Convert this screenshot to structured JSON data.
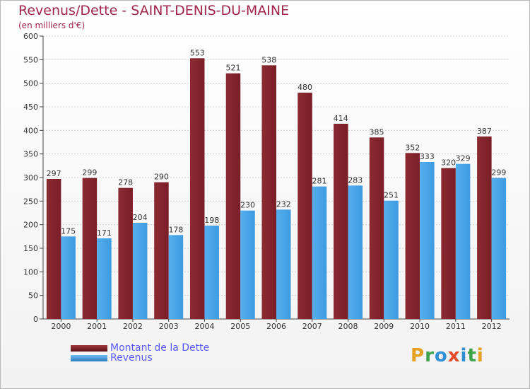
{
  "title": "Revenus/Dette - SAINT-DENIS-DU-MAINE",
  "subtitle": "(en milliers d'€)",
  "brand": "Proxiti",
  "chart_data": {
    "type": "bar",
    "categories": [
      "2000",
      "2001",
      "2002",
      "2003",
      "2004",
      "2005",
      "2006",
      "2007",
      "2008",
      "2009",
      "2010",
      "2011",
      "2012"
    ],
    "series": [
      {
        "name": "Montant de la Dette",
        "values": [
          297,
          299,
          278,
          290,
          553,
          521,
          538,
          480,
          414,
          385,
          352,
          320,
          387
        ],
        "color": "#7b1e27"
      },
      {
        "name": "Revenus",
        "values": [
          175,
          171,
          204,
          178,
          198,
          230,
          232,
          281,
          283,
          251,
          333,
          329,
          299
        ],
        "color": "#3e9be0"
      }
    ],
    "ylim": [
      0,
      600
    ],
    "yticks": [
      0,
      50,
      100,
      150,
      200,
      250,
      300,
      350,
      400,
      450,
      500,
      550,
      600
    ],
    "grid": true,
    "legend_position": "bottom-left",
    "title": "Revenus/Dette - SAINT-DENIS-DU-MAINE",
    "ylabel": "(en milliers d'€)"
  },
  "colors": {
    "title": "#a0264a",
    "legend_text": "#5a5aff",
    "dette_dark": "#5a0f14",
    "revenus_dark": "#2b7cc1"
  },
  "legend": {
    "items": [
      {
        "label": "Montant de la Dette",
        "color": "#7b1e27"
      },
      {
        "label": "Revenus",
        "color": "#3e9be0"
      }
    ]
  }
}
